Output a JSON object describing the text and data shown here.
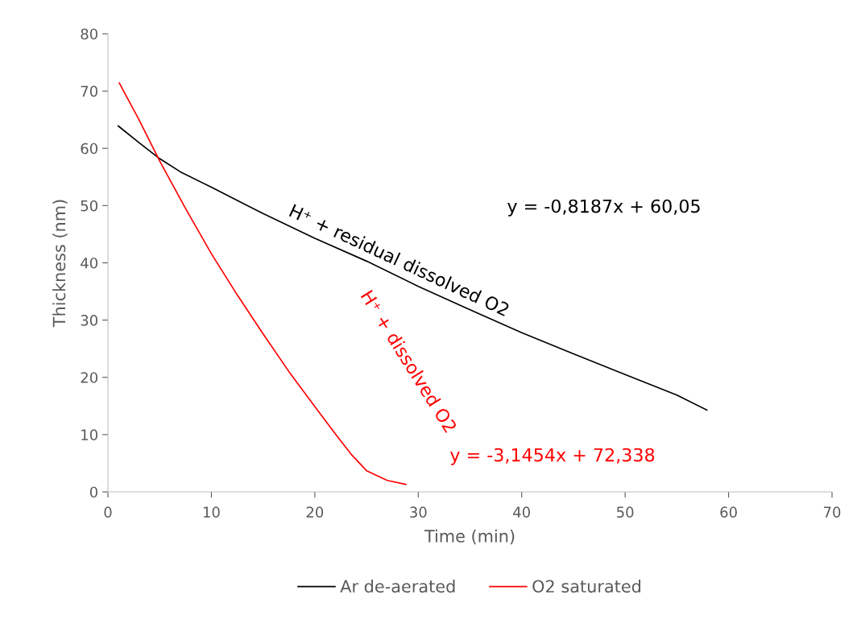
{
  "chart_data": {
    "type": "line",
    "xlabel": "Time (min)",
    "ylabel": "Thickness (nm)",
    "xlim": [
      0,
      70
    ],
    "ylim": [
      0,
      80
    ],
    "xticks": [
      0,
      10,
      20,
      30,
      40,
      50,
      60,
      70
    ],
    "yticks": [
      0,
      10,
      20,
      30,
      40,
      50,
      60,
      70,
      80
    ],
    "grid": false,
    "legend": "bottom",
    "marker": "none",
    "line_style": "solid",
    "series": [
      {
        "name": "Ar de-aerated",
        "color": "#000000",
        "x": [
          1,
          3,
          5,
          7,
          10,
          15,
          20,
          25,
          30,
          35,
          40,
          45,
          50,
          55,
          57.9
        ],
        "values": [
          63.9,
          61,
          58.2,
          55.9,
          53.2,
          48.6,
          44.3,
          40.3,
          35.9,
          31.8,
          27.8,
          24.1,
          20.5,
          16.9,
          14.3
        ]
      },
      {
        "name": "O2 saturated",
        "color": "#ff0000",
        "x": [
          1.1,
          3,
          5,
          7.5,
          10,
          12.5,
          15,
          17.5,
          20,
          22,
          23.5,
          25,
          27,
          28.8
        ],
        "values": [
          71.4,
          65,
          57.8,
          49.5,
          41.6,
          34.4,
          27.6,
          21,
          14.9,
          10.1,
          6.6,
          3.7,
          2,
          1.3
        ]
      }
    ],
    "annotations": [
      "H⁺ + residual dissolved O2",
      "y = -0,8187x + 60,05",
      "H⁺ + dissolved O2",
      "y = -3,1454x + 72,338"
    ]
  }
}
